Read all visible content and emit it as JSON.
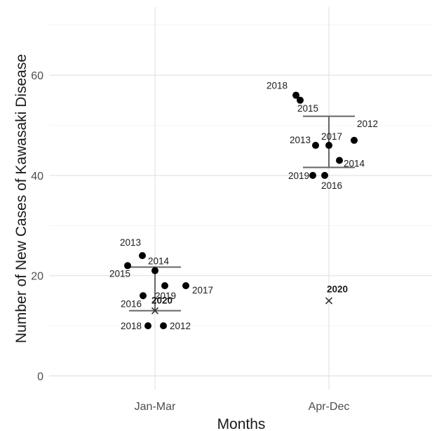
{
  "chart_data": {
    "type": "scatter",
    "xlabel": "Months",
    "ylabel": "Number of New Cases of Kawasaki Disease",
    "categories": [
      "Jan-Mar",
      "Apr-Dec"
    ],
    "ylim": [
      0,
      72
    ],
    "yticks": [
      0,
      20,
      40,
      60
    ],
    "grid": true,
    "legend": "none",
    "colors": {
      "points": "#000000",
      "errorbar": "#666666",
      "grid": "#e6e6e6"
    },
    "groups": [
      {
        "category": "Jan-Mar",
        "points": [
          {
            "label": "2012",
            "value": 10
          },
          {
            "label": "2013",
            "value": 24
          },
          {
            "label": "2014",
            "value": 21
          },
          {
            "label": "2015",
            "value": 22
          },
          {
            "label": "2016",
            "value": 16
          },
          {
            "label": "2017",
            "value": 18
          },
          {
            "label": "2018",
            "value": 10
          },
          {
            "label": "2019",
            "value": 18
          }
        ],
        "errorbar": {
          "low": 13,
          "high": 21.7
        },
        "highlight": {
          "label": "2020",
          "value": 13,
          "marker": "x"
        }
      },
      {
        "category": "Apr-Dec",
        "points": [
          {
            "label": "2012",
            "value": 47
          },
          {
            "label": "2013",
            "value": 46
          },
          {
            "label": "2014",
            "value": 43
          },
          {
            "label": "2015",
            "value": 55
          },
          {
            "label": "2016",
            "value": 40
          },
          {
            "label": "2017",
            "value": 46
          },
          {
            "label": "2018",
            "value": 56
          },
          {
            "label": "2019",
            "value": 40
          }
        ],
        "errorbar": {
          "low": 41.6,
          "high": 51.8
        },
        "highlight": {
          "label": "2020",
          "value": 15,
          "marker": "x"
        }
      }
    ]
  }
}
